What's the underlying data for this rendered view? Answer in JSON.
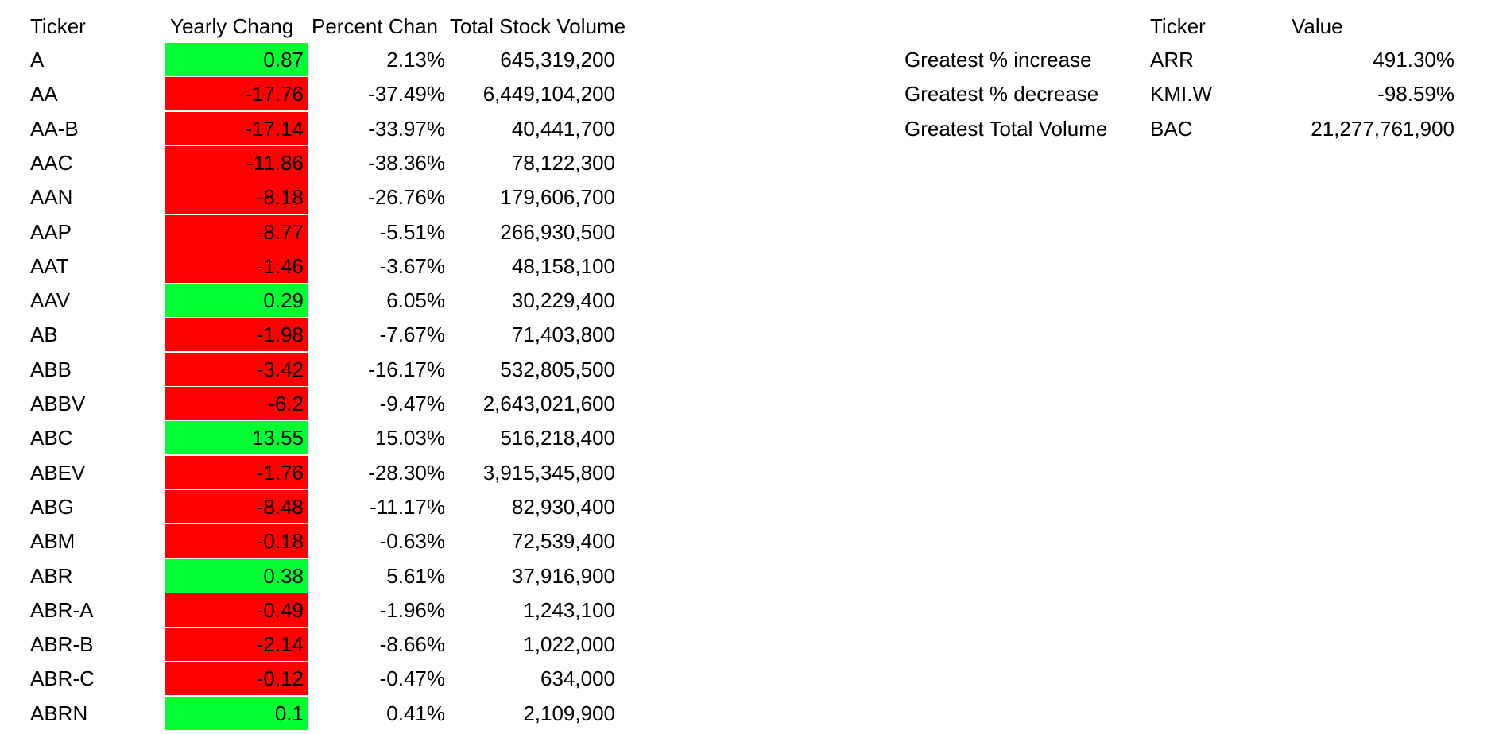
{
  "main_table": {
    "headers": {
      "ticker": "Ticker",
      "yearly_change": "Yearly Chang",
      "percent_change": "Percent Chan",
      "total_volume": "Total Stock Volume"
    },
    "rows": [
      {
        "ticker": "A",
        "yearly_change": "0.87",
        "percent_change": "2.13%",
        "total_volume": "645,319,200",
        "status": "pos"
      },
      {
        "ticker": "AA",
        "yearly_change": "-17.76",
        "percent_change": "-37.49%",
        "total_volume": "6,449,104,200",
        "status": "neg"
      },
      {
        "ticker": "AA-B",
        "yearly_change": "-17.14",
        "percent_change": "-33.97%",
        "total_volume": "40,441,700",
        "status": "neg"
      },
      {
        "ticker": "AAC",
        "yearly_change": "-11.86",
        "percent_change": "-38.36%",
        "total_volume": "78,122,300",
        "status": "neg"
      },
      {
        "ticker": "AAN",
        "yearly_change": "-8.18",
        "percent_change": "-26.76%",
        "total_volume": "179,606,700",
        "status": "neg"
      },
      {
        "ticker": "AAP",
        "yearly_change": "-8.77",
        "percent_change": "-5.51%",
        "total_volume": "266,930,500",
        "status": "neg"
      },
      {
        "ticker": "AAT",
        "yearly_change": "-1.46",
        "percent_change": "-3.67%",
        "total_volume": "48,158,100",
        "status": "neg"
      },
      {
        "ticker": "AAV",
        "yearly_change": "0.29",
        "percent_change": "6.05%",
        "total_volume": "30,229,400",
        "status": "pos"
      },
      {
        "ticker": "AB",
        "yearly_change": "-1.98",
        "percent_change": "-7.67%",
        "total_volume": "71,403,800",
        "status": "neg"
      },
      {
        "ticker": "ABB",
        "yearly_change": "-3.42",
        "percent_change": "-16.17%",
        "total_volume": "532,805,500",
        "status": "neg"
      },
      {
        "ticker": "ABBV",
        "yearly_change": "-6.2",
        "percent_change": "-9.47%",
        "total_volume": "2,643,021,600",
        "status": "neg"
      },
      {
        "ticker": "ABC",
        "yearly_change": "13.55",
        "percent_change": "15.03%",
        "total_volume": "516,218,400",
        "status": "pos"
      },
      {
        "ticker": "ABEV",
        "yearly_change": "-1.76",
        "percent_change": "-28.30%",
        "total_volume": "3,915,345,800",
        "status": "neg"
      },
      {
        "ticker": "ABG",
        "yearly_change": "-8.48",
        "percent_change": "-11.17%",
        "total_volume": "82,930,400",
        "status": "neg"
      },
      {
        "ticker": "ABM",
        "yearly_change": "-0.18",
        "percent_change": "-0.63%",
        "total_volume": "72,539,400",
        "status": "neg"
      },
      {
        "ticker": "ABR",
        "yearly_change": "0.38",
        "percent_change": "5.61%",
        "total_volume": "37,916,900",
        "status": "pos"
      },
      {
        "ticker": "ABR-A",
        "yearly_change": "-0.49",
        "percent_change": "-1.96%",
        "total_volume": "1,243,100",
        "status": "neg"
      },
      {
        "ticker": "ABR-B",
        "yearly_change": "-2.14",
        "percent_change": "-8.66%",
        "total_volume": "1,022,000",
        "status": "neg"
      },
      {
        "ticker": "ABR-C",
        "yearly_change": "-0.12",
        "percent_change": "-0.47%",
        "total_volume": "634,000",
        "status": "neg"
      },
      {
        "ticker": "ABRN",
        "yearly_change": "0.1",
        "percent_change": "0.41%",
        "total_volume": "2,109,900",
        "status": "pos"
      }
    ]
  },
  "summary_table": {
    "headers": {
      "ticker": "Ticker",
      "value": "Value"
    },
    "rows": [
      {
        "label": "Greatest % increase",
        "ticker": "ARR",
        "value": "491.30%"
      },
      {
        "label": "Greatest % decrease",
        "ticker": "KMI.W",
        "value": "-98.59%"
      },
      {
        "label": "Greatest Total Volume",
        "ticker": "BAC",
        "value": "21,277,761,900"
      }
    ]
  },
  "colors": {
    "positive_fill": "#00ff33",
    "negative_fill": "#ff0000",
    "background": "#ffffff",
    "text": "#000000"
  }
}
